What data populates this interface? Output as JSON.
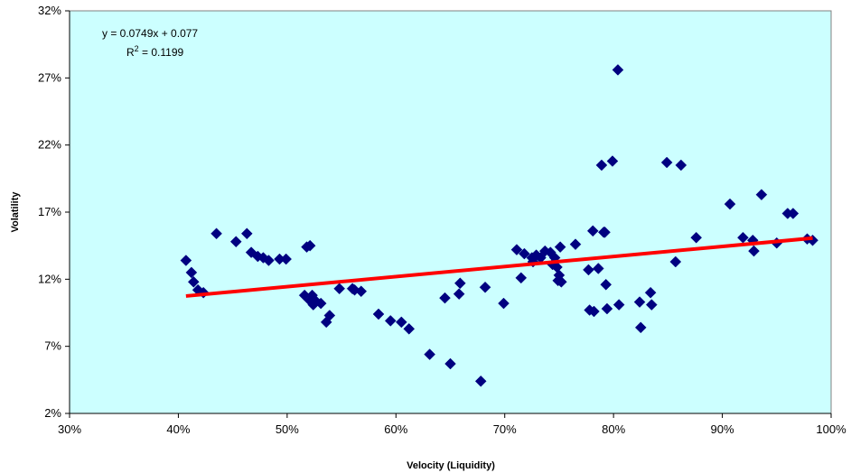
{
  "chart_data": {
    "type": "scatter",
    "xlabel": "Velocity (Liquidity)",
    "ylabel": "Volatility",
    "xlim": [
      0.3,
      1.0
    ],
    "ylim": [
      0.02,
      0.32
    ],
    "xticks": [
      "30%",
      "40%",
      "50%",
      "60%",
      "70%",
      "80%",
      "90%",
      "100%"
    ],
    "xtick_values": [
      0.3,
      0.4,
      0.5,
      0.6,
      0.7,
      0.8,
      0.9,
      1.0
    ],
    "yticks": [
      "2%",
      "7%",
      "12%",
      "17%",
      "22%",
      "27%",
      "32%"
    ],
    "ytick_values": [
      0.02,
      0.07,
      0.12,
      0.17,
      0.22,
      0.27,
      0.32
    ],
    "equation": "y = 0.0749x + 0.077",
    "r2_prefix": "R",
    "r2_sup": "2",
    "r2_value": " = 0.1199",
    "plot_bg": "#ccffff",
    "marker_color": "#000080",
    "trend_color": "#ff0000",
    "trendline": {
      "slope": 0.0749,
      "intercept": 0.077,
      "x_range": [
        0.407,
        0.983
      ]
    },
    "points": [
      [
        0.407,
        0.134
      ],
      [
        0.412,
        0.125
      ],
      [
        0.414,
        0.118
      ],
      [
        0.418,
        0.112
      ],
      [
        0.423,
        0.11
      ],
      [
        0.435,
        0.154
      ],
      [
        0.453,
        0.148
      ],
      [
        0.463,
        0.154
      ],
      [
        0.467,
        0.14
      ],
      [
        0.473,
        0.137
      ],
      [
        0.478,
        0.136
      ],
      [
        0.483,
        0.134
      ],
      [
        0.493,
        0.135
      ],
      [
        0.499,
        0.135
      ],
      [
        0.516,
        0.108
      ],
      [
        0.518,
        0.144
      ],
      [
        0.521,
        0.145
      ],
      [
        0.521,
        0.104
      ],
      [
        0.523,
        0.108
      ],
      [
        0.524,
        0.101
      ],
      [
        0.526,
        0.104
      ],
      [
        0.531,
        0.102
      ],
      [
        0.536,
        0.088
      ],
      [
        0.539,
        0.093
      ],
      [
        0.548,
        0.113
      ],
      [
        0.56,
        0.113
      ],
      [
        0.562,
        0.112
      ],
      [
        0.568,
        0.111
      ],
      [
        0.584,
        0.094
      ],
      [
        0.595,
        0.089
      ],
      [
        0.605,
        0.088
      ],
      [
        0.612,
        0.083
      ],
      [
        0.631,
        0.064
      ],
      [
        0.645,
        0.106
      ],
      [
        0.65,
        0.057
      ],
      [
        0.658,
        0.109
      ],
      [
        0.659,
        0.117
      ],
      [
        0.678,
        0.044
      ],
      [
        0.682,
        0.114
      ],
      [
        0.699,
        0.102
      ],
      [
        0.711,
        0.142
      ],
      [
        0.715,
        0.121
      ],
      [
        0.718,
        0.139
      ],
      [
        0.725,
        0.136
      ],
      [
        0.726,
        0.133
      ],
      [
        0.729,
        0.138
      ],
      [
        0.733,
        0.136
      ],
      [
        0.737,
        0.141
      ],
      [
        0.742,
        0.14
      ],
      [
        0.744,
        0.131
      ],
      [
        0.746,
        0.136
      ],
      [
        0.748,
        0.129
      ],
      [
        0.749,
        0.119
      ],
      [
        0.75,
        0.123
      ],
      [
        0.751,
        0.144
      ],
      [
        0.752,
        0.118
      ],
      [
        0.765,
        0.146
      ],
      [
        0.777,
        0.127
      ],
      [
        0.778,
        0.097
      ],
      [
        0.781,
        0.156
      ],
      [
        0.782,
        0.096
      ],
      [
        0.786,
        0.128
      ],
      [
        0.789,
        0.205
      ],
      [
        0.791,
        0.155
      ],
      [
        0.792,
        0.155
      ],
      [
        0.793,
        0.116
      ],
      [
        0.794,
        0.098
      ],
      [
        0.799,
        0.208
      ],
      [
        0.804,
        0.276
      ],
      [
        0.805,
        0.101
      ],
      [
        0.824,
        0.103
      ],
      [
        0.825,
        0.084
      ],
      [
        0.834,
        0.11
      ],
      [
        0.835,
        0.101
      ],
      [
        0.849,
        0.207
      ],
      [
        0.857,
        0.133
      ],
      [
        0.862,
        0.205
      ],
      [
        0.876,
        0.151
      ],
      [
        0.907,
        0.176
      ],
      [
        0.919,
        0.151
      ],
      [
        0.928,
        0.149
      ],
      [
        0.929,
        0.141
      ],
      [
        0.936,
        0.183
      ],
      [
        0.95,
        0.147
      ],
      [
        0.96,
        0.169
      ],
      [
        0.965,
        0.169
      ],
      [
        0.978,
        0.15
      ],
      [
        0.983,
        0.149
      ]
    ]
  }
}
